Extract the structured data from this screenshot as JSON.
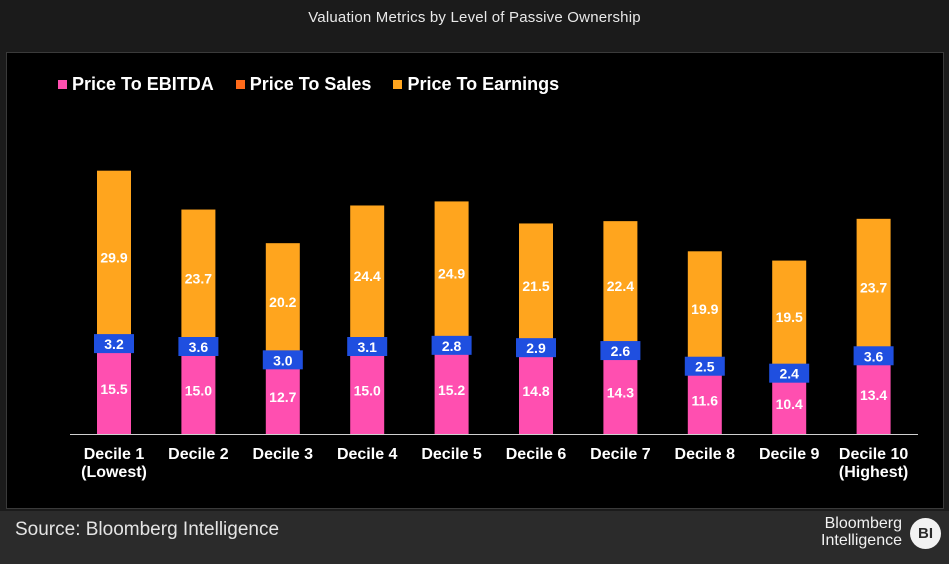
{
  "title": "Valuation Metrics by Level of Passive Ownership",
  "footer": {
    "source": "Source: Bloomberg Intelligence",
    "brand_line1": "Bloomberg",
    "brand_line2": "Intelligence",
    "brand_mark": "BI"
  },
  "colors": {
    "ebitda": "#ff4fb0",
    "sales": "#1f4fe0",
    "earnings": "#ffa51e",
    "sales_legend": "#ff6a1a"
  },
  "chart_data": {
    "type": "bar",
    "stacked": true,
    "title": "Valuation Metrics by Level of Passive Ownership",
    "legend_position": "top-left",
    "grid": false,
    "categories": [
      [
        "Decile 1",
        "(Lowest)"
      ],
      [
        "Decile 2"
      ],
      [
        "Decile 3"
      ],
      [
        "Decile 4"
      ],
      [
        "Decile 5"
      ],
      [
        "Decile 6"
      ],
      [
        "Decile 7"
      ],
      [
        "Decile 8"
      ],
      [
        "Decile 9"
      ],
      [
        "Decile 10",
        "(Highest)"
      ]
    ],
    "series": [
      {
        "name": "Price To EBITDA",
        "values": [
          15.5,
          15.0,
          12.7,
          15.0,
          15.2,
          14.8,
          14.3,
          11.6,
          10.4,
          13.4
        ]
      },
      {
        "name": "Price To Sales",
        "values": [
          3.2,
          3.6,
          3.0,
          3.1,
          2.8,
          2.9,
          2.6,
          2.5,
          2.4,
          3.6
        ]
      },
      {
        "name": "Price To Earnings",
        "values": [
          29.9,
          23.7,
          20.2,
          24.4,
          24.9,
          21.5,
          22.4,
          19.9,
          19.5,
          23.7
        ]
      }
    ]
  }
}
